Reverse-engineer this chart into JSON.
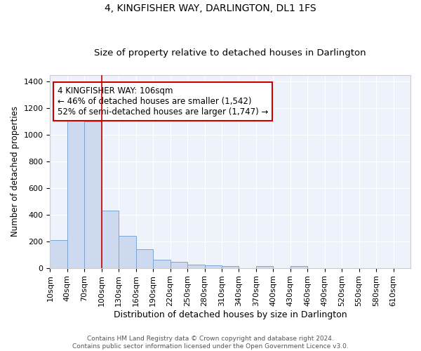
{
  "title": "4, KINGFISHER WAY, DARLINGTON, DL1 1FS",
  "subtitle": "Size of property relative to detached houses in Darlington",
  "xlabel": "Distribution of detached houses by size in Darlington",
  "ylabel": "Number of detached properties",
  "bar_color": "#ccd9ee",
  "bar_edgecolor": "#7aa6d4",
  "background_color": "#eef2fb",
  "grid_color": "#ffffff",
  "annotation_text": "4 KINGFISHER WAY: 106sqm\n← 46% of detached houses are smaller (1,542)\n52% of semi-detached houses are larger (1,747) →",
  "annotation_box_color": "#ffffff",
  "annotation_box_edgecolor": "#cc0000",
  "vline_x": 100,
  "vline_color": "#cc0000",
  "categories": [
    "10sqm",
    "40sqm",
    "70sqm",
    "100sqm",
    "130sqm",
    "160sqm",
    "190sqm",
    "220sqm",
    "250sqm",
    "280sqm",
    "310sqm",
    "340sqm",
    "370sqm",
    "400sqm",
    "430sqm",
    "460sqm",
    "490sqm",
    "520sqm",
    "550sqm",
    "580sqm",
    "610sqm"
  ],
  "bin_edges": [
    10,
    40,
    70,
    100,
    130,
    160,
    190,
    220,
    250,
    280,
    310,
    340,
    370,
    400,
    430,
    460,
    490,
    520,
    550,
    580,
    610,
    640
  ],
  "values": [
    210,
    1120,
    1100,
    430,
    240,
    140,
    62,
    47,
    25,
    20,
    15,
    0,
    15,
    0,
    15,
    0,
    0,
    0,
    0,
    0,
    0
  ],
  "ylim": [
    0,
    1450
  ],
  "yticks": [
    0,
    200,
    400,
    600,
    800,
    1000,
    1200,
    1400
  ],
  "footer_text": "Contains HM Land Registry data © Crown copyright and database right 2024.\nContains public sector information licensed under the Open Government Licence v3.0.",
  "title_fontsize": 10,
  "subtitle_fontsize": 9.5,
  "xlabel_fontsize": 9,
  "ylabel_fontsize": 8.5,
  "tick_fontsize": 8,
  "footer_fontsize": 6.5,
  "annot_fontsize": 8.5
}
